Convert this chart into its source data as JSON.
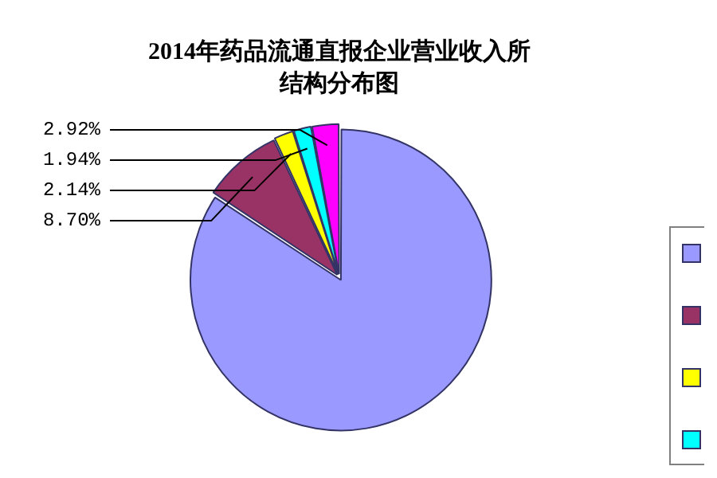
{
  "chart_data": {
    "type": "pie",
    "title": "2014年药品流通直报企业营业收入所",
    "subtitle": "结构分布图",
    "categories": [
      null,
      null,
      null,
      null,
      null
    ],
    "values": [
      84.3,
      8.7,
      2.14,
      1.94,
      2.92
    ],
    "value_labels": [
      null,
      "8.70%",
      "2.14%",
      "1.94%",
      "2.92%"
    ],
    "colors": [
      "#9999ff",
      "#993366",
      "#ffff00",
      "#00ffff",
      "#ff00ff"
    ]
  }
}
